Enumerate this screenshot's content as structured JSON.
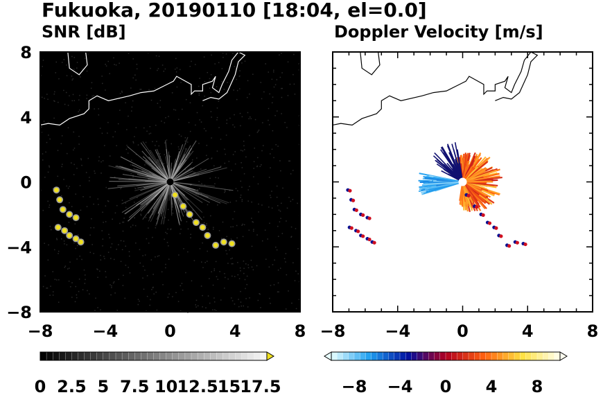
{
  "figure": {
    "title": "Fukuoka, 20190110 [18:04, el=0.0]"
  },
  "panels": [
    {
      "id": "snr",
      "subtitle": "SNR [dB]",
      "background": "#000000",
      "coast_color": "#ffffff"
    },
    {
      "id": "doppler",
      "subtitle": "Doppler Velocity [m/s]",
      "background": "#ffffff",
      "coast_color": "#000000"
    }
  ],
  "chart_data": [
    {
      "type": "heatmap",
      "title": "SNR [dB]",
      "xlim": [
        -8,
        8
      ],
      "ylim": [
        -8,
        8
      ],
      "xticks": [
        -8,
        -4,
        0,
        4,
        8
      ],
      "yticks": [
        -8,
        -4,
        0,
        4,
        8
      ],
      "colorbar": {
        "ticks": [
          "0",
          "2.5",
          "5",
          "7.5",
          "10",
          "12.5",
          "15",
          "17.5"
        ],
        "range": [
          0,
          18
        ],
        "colors": [
          "#000000",
          "#ffffff",
          "#f0e020"
        ],
        "extend": "max"
      },
      "features": [
        {
          "name": "radar-clutter",
          "x": 0,
          "y": 0,
          "radius": 4,
          "value": 8
        },
        {
          "name": "echo-band-south-east",
          "x": [
            0.2,
            3.8
          ],
          "y": [
            -0.8,
            -4.0
          ],
          "value": 18
        },
        {
          "name": "echo-band-west",
          "x": [
            -7.0,
            -5.5
          ],
          "y": [
            -0.5,
            -3.8
          ],
          "value": 18
        }
      ]
    },
    {
      "type": "heatmap",
      "title": "Doppler Velocity [m/s]",
      "xlim": [
        -8,
        8
      ],
      "ylim": [
        -8,
        8
      ],
      "xticks": [
        -8,
        -4,
        0,
        4,
        8
      ],
      "yticks": [
        -8,
        -4,
        0,
        4,
        8
      ],
      "colorbar": {
        "ticks": [
          "−8",
          "−4",
          "0",
          "4",
          "8"
        ],
        "range": [
          -10,
          10
        ],
        "colors": [
          "#e8ffff",
          "#20a0f0",
          "#0010a0",
          "#b00020",
          "#ff6010",
          "#ffe040",
          "#fffff0"
        ],
        "extend": "both"
      },
      "features": [
        {
          "name": "receding-sector-east",
          "x": 0,
          "y": 0,
          "radius": 2.3,
          "value": 4
        },
        {
          "name": "approaching-sector-west",
          "x": -2.6,
          "y": -0.2,
          "value": -8
        },
        {
          "name": "echo-band-south-east",
          "x": [
            0.2,
            3.8
          ],
          "y": [
            -0.8,
            -4.0
          ],
          "value": 2
        },
        {
          "name": "echo-band-west",
          "x": [
            -7.0,
            -5.5
          ],
          "y": [
            -0.5,
            -3.8
          ],
          "value": 0
        }
      ]
    }
  ]
}
